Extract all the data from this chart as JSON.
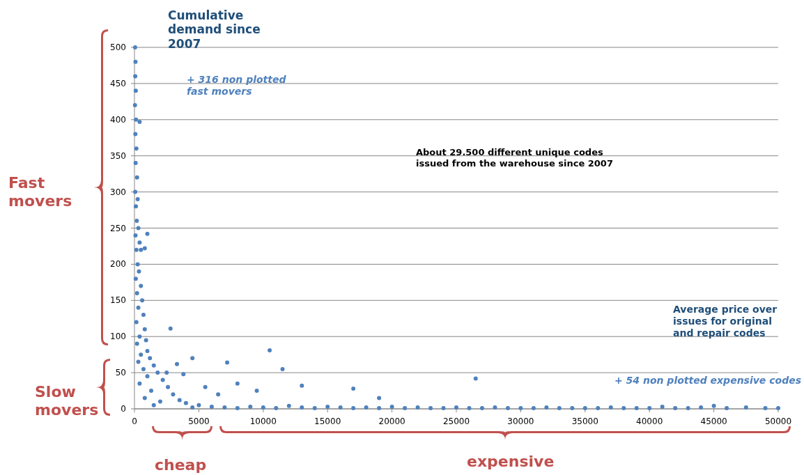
{
  "chart_data": {
    "type": "scatter",
    "ylabel": "Cumulative demand since 2007",
    "xlabel": "Average price over issues for original and repair codes",
    "annotations": [
      "+ 316 non plotted fast movers",
      "About 29.500 different  unique codes issued from the warehouse since 2007",
      "+ 54 non plotted expensive codes",
      "Fast movers",
      "Slow movers",
      "cheap",
      "expensive"
    ],
    "xlim": [
      0,
      50000
    ],
    "xticks": [
      0,
      5000,
      10000,
      15000,
      20000,
      25000,
      30000,
      35000,
      40000,
      45000,
      50000
    ],
    "ylim": [
      0,
      500
    ],
    "yticks": [
      0,
      50,
      100,
      150,
      200,
      250,
      300,
      350,
      400,
      450,
      500
    ],
    "grid": "y",
    "marker": "circle",
    "series": [
      {
        "color": "#4f81bd",
        "x": [
          50,
          80,
          60,
          100,
          40,
          120,
          70,
          150,
          90,
          200,
          60,
          250,
          110,
          180,
          300,
          80,
          400,
          150,
          250,
          350,
          100,
          500,
          200,
          600,
          300,
          700,
          150,
          800,
          400,
          900,
          200,
          1000,
          500,
          1200,
          300,
          1500,
          700,
          1800,
          1000,
          2200,
          400,
          2600,
          1300,
          3000,
          800,
          3500,
          2000,
          4000,
          1500,
          5000,
          6000,
          4500,
          7000,
          8000,
          9000,
          10000,
          11000,
          12000,
          13000,
          14000,
          15000,
          16000,
          17000,
          18000,
          19000,
          20000,
          21000,
          22000,
          23000,
          24000,
          25000,
          26000,
          27000,
          28000,
          29000,
          30000,
          31000,
          32000,
          33000,
          34000,
          35000,
          36000,
          37000,
          38000,
          39000,
          40000,
          41000,
          42000,
          43000,
          44000,
          45000,
          46000,
          47500,
          49000,
          50000,
          400,
          1000,
          800,
          500,
          2800,
          4500,
          3300,
          7200,
          10500,
          11500,
          26500,
          8000,
          13000,
          17000,
          19000,
          9500,
          6500,
          2500,
          3800,
          5500
        ],
        "values": [
          500,
          480,
          460,
          440,
          420,
          400,
          380,
          360,
          340,
          320,
          300,
          290,
          280,
          260,
          250,
          240,
          230,
          220,
          200,
          190,
          180,
          170,
          160,
          150,
          140,
          130,
          120,
          110,
          100,
          95,
          90,
          80,
          75,
          70,
          65,
          60,
          55,
          50,
          45,
          40,
          35,
          30,
          25,
          20,
          15,
          12,
          10,
          8,
          5,
          5,
          3,
          2,
          2,
          1,
          3,
          2,
          1,
          4,
          2,
          1,
          3,
          2,
          1,
          2,
          1,
          3,
          1,
          2,
          1,
          1,
          2,
          1,
          1,
          2,
          1,
          1,
          1,
          2,
          1,
          1,
          1,
          1,
          2,
          1,
          1,
          1,
          3,
          1,
          1,
          2,
          4,
          1,
          2,
          1,
          1,
          397,
          242,
          222,
          220,
          111,
          70,
          62,
          64,
          81,
          55,
          42,
          35,
          32,
          28,
          15,
          25,
          20,
          50,
          48,
          30
        ]
      }
    ]
  }
}
